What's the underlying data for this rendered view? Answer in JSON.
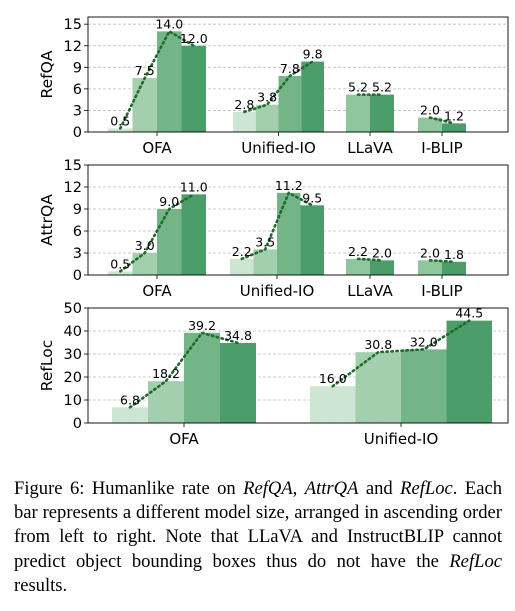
{
  "chart_data": [
    {
      "type": "bar",
      "ylabel": "RefQA",
      "ylim": [
        0,
        16
      ],
      "yticks": [
        0,
        3,
        6,
        9,
        12,
        15
      ],
      "grid": true,
      "groups": [
        {
          "category": "OFA",
          "values": [
            0.5,
            7.5,
            14.0,
            12.0
          ],
          "labels": [
            "0.5",
            "7.5",
            "14.0",
            "12.0"
          ]
        },
        {
          "category": "Unified-IO",
          "values": [
            2.8,
            3.8,
            7.8,
            9.8
          ],
          "labels": [
            "2.8",
            "3.8",
            "7.8",
            "9.8"
          ]
        },
        {
          "category": "LLaVA",
          "values": [
            5.2,
            5.2
          ],
          "labels": [
            "5.2",
            "5.2"
          ]
        },
        {
          "category": "I-BLIP",
          "values": [
            2.0,
            1.2
          ],
          "labels": [
            "2.0",
            "1.2"
          ]
        }
      ]
    },
    {
      "type": "bar",
      "ylabel": "AttrQA",
      "ylim": [
        0,
        15
      ],
      "yticks": [
        0,
        3,
        6,
        9,
        12,
        15
      ],
      "grid": true,
      "groups": [
        {
          "category": "OFA",
          "values": [
            0.5,
            3.0,
            9.0,
            11.0
          ],
          "labels": [
            "0.5",
            "3.0",
            "9.0",
            "11.0"
          ]
        },
        {
          "category": "Unified-IO",
          "values": [
            2.2,
            3.5,
            11.2,
            9.5
          ],
          "labels": [
            "2.2",
            "3.5",
            "11.2",
            "9.5"
          ]
        },
        {
          "category": "LLaVA",
          "values": [
            2.2,
            2.0
          ],
          "labels": [
            "2.2",
            "2.0"
          ]
        },
        {
          "category": "I-BLIP",
          "values": [
            2.0,
            1.8
          ],
          "labels": [
            "2.0",
            "1.8"
          ]
        }
      ]
    },
    {
      "type": "bar",
      "ylabel": "RefLoc",
      "ylim": [
        0,
        50
      ],
      "yticks": [
        0,
        10,
        20,
        30,
        40,
        50
      ],
      "grid": true,
      "groups": [
        {
          "category": "OFA",
          "values": [
            6.8,
            18.2,
            39.2,
            34.8
          ],
          "labels": [
            "6.8",
            "18.2",
            "39.2",
            "34.8"
          ]
        },
        {
          "category": "Unified-IO",
          "values": [
            16.0,
            30.8,
            32.0,
            44.5
          ],
          "labels": [
            "16.0",
            "30.8",
            "32.0",
            "44.5"
          ]
        }
      ]
    }
  ],
  "colors": {
    "four_sizes": [
      "#cde5d3",
      "#a3cfae",
      "#74b587",
      "#4b9d69"
    ],
    "two_sizes": [
      "#8fc69c",
      "#4b9d69"
    ],
    "trend": "#1e6b2a",
    "grid": "#bdbdbd"
  },
  "caption": {
    "prefix": "Figure 6: Humanlike rate on ",
    "t1": "RefQA",
    "sep1": ", ",
    "t2": "AttrQA",
    "sep2": " and ",
    "t3": "RefLoc",
    "mid": ". Each bar represents a different model size, arranged in ascending order from left to right. Note that LLaVA and InstructBLIP cannot predict object bounding boxes thus do not have the ",
    "t4": "RefLoc",
    "suffix": " results."
  }
}
